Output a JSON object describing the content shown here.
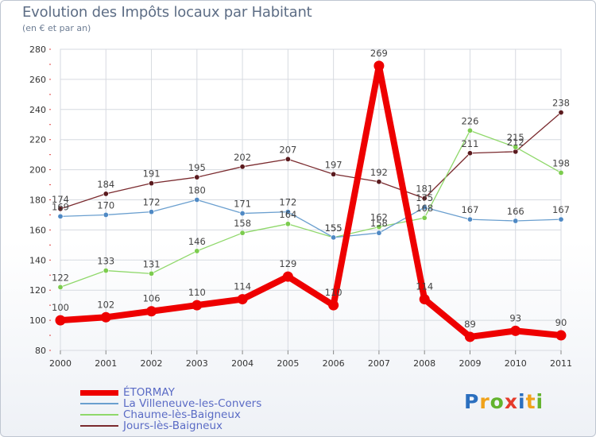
{
  "header": {
    "title": "Evolution des Impôts locaux par Habitant",
    "subtitle": "(en € et par an)"
  },
  "logo": {
    "text": "Proxiti",
    "letters": [
      {
        "ch": "P",
        "color": "#2b6fbf"
      },
      {
        "ch": "r",
        "color": "#f0a21a"
      },
      {
        "ch": "o",
        "color": "#63b32e"
      },
      {
        "ch": "x",
        "color": "#e53b2b"
      },
      {
        "ch": "i",
        "color": "#2b6fbf"
      },
      {
        "ch": "t",
        "color": "#f0a21a"
      },
      {
        "ch": "i",
        "color": "#63b32e"
      }
    ]
  },
  "chart_data": {
    "type": "line",
    "title": "Evolution des Impôts locaux par Habitant",
    "subtitle": "(en € et par an)",
    "x": [
      2000,
      2001,
      2002,
      2003,
      2004,
      2005,
      2006,
      2007,
      2008,
      2009,
      2010,
      2011
    ],
    "ylim": [
      80,
      280
    ],
    "yticks": [
      80,
      100,
      120,
      140,
      160,
      180,
      200,
      220,
      240,
      260,
      280
    ],
    "grid": true,
    "legend_position": "bottom-left",
    "series": [
      {
        "name": "Jours-lès-Baigneux",
        "color": "#7a2a2e",
        "dot": "#5a1a1e",
        "bold": false,
        "values": [
          174,
          184,
          191,
          195,
          202,
          207,
          197,
          192,
          181,
          211,
          212,
          238
        ],
        "labels": [
          "174",
          "184",
          "191",
          "195",
          "202",
          "207",
          "197",
          "192",
          "181",
          "211",
          "212",
          "238"
        ]
      },
      {
        "name": "Chaume-lès-Baigneux",
        "color": "#8fd86a",
        "dot": "#7ccc4e",
        "bold": false,
        "values": [
          122,
          133,
          131,
          146,
          158,
          164,
          155,
          162,
          168,
          226,
          215,
          198
        ],
        "labels": [
          "122",
          "133",
          "131",
          "146",
          "158",
          "164",
          "155",
          "162",
          "168",
          "226",
          "215",
          "198"
        ]
      },
      {
        "name": "La Villeneuve-les-Convers",
        "color": "#6a9fcf",
        "dot": "#4f89c4",
        "bold": false,
        "values": [
          169,
          170,
          172,
          180,
          171,
          172,
          155,
          158,
          175,
          167,
          166,
          167
        ],
        "labels": [
          "169",
          "170",
          "172",
          "180",
          "171",
          "172",
          "155",
          "158",
          "175",
          "167",
          "166",
          "167"
        ]
      },
      {
        "name": "ÉTORMAY",
        "color": "#ee0000",
        "dot": "#ee0000",
        "bold": true,
        "values": [
          100,
          102,
          106,
          110,
          114,
          129,
          110,
          269,
          114,
          89,
          93,
          90
        ],
        "labels": [
          "100",
          "102",
          "106",
          "110",
          "114",
          "129",
          "110",
          "269",
          "114",
          "89",
          "93",
          "90"
        ]
      }
    ],
    "legend": [
      {
        "name": "ÉTORMAY",
        "color": "#ee0000",
        "bold": true
      },
      {
        "name": "La Villeneuve-les-Convers",
        "color": "#6a9fcf",
        "bold": false
      },
      {
        "name": "Chaume-lès-Baigneux",
        "color": "#8fd86a",
        "bold": false
      },
      {
        "name": "Jours-lès-Baigneux",
        "color": "#7a2a2e",
        "bold": false
      }
    ]
  }
}
